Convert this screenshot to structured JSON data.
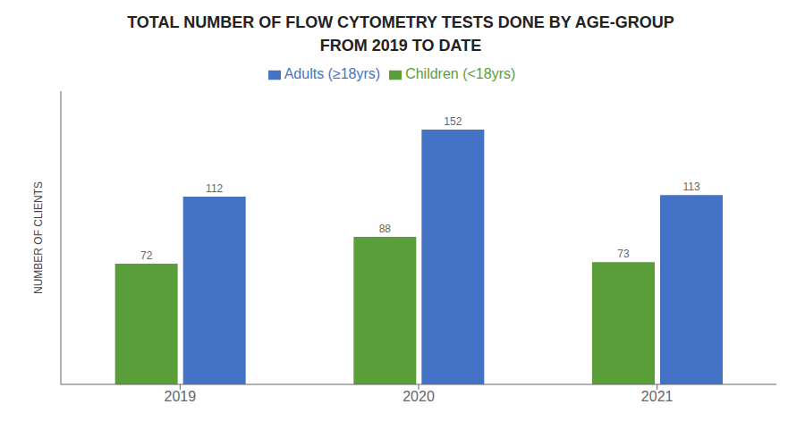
{
  "chart_data": {
    "type": "bar",
    "title": "TOTAL NUMBER OF FLOW CYTOMETRY TESTS DONE BY AGE-GROUP",
    "subtitle": "FROM 2019 TO DATE",
    "y_label": "NUMBER OF CLIENTS",
    "categories": [
      "2019",
      "2020",
      "2021"
    ],
    "series": [
      {
        "name": "Children (<18yrs)",
        "color": "#5a9e3a",
        "values": [
          72,
          88,
          73
        ]
      },
      {
        "name": "Adults (≥18yrs)",
        "color": "#4472c4",
        "values": [
          112,
          152,
          113
        ]
      }
    ],
    "ylim": [
      0,
      175
    ],
    "tick_labels": "x",
    "data_labels": true,
    "legend": "top",
    "grid": false
  }
}
